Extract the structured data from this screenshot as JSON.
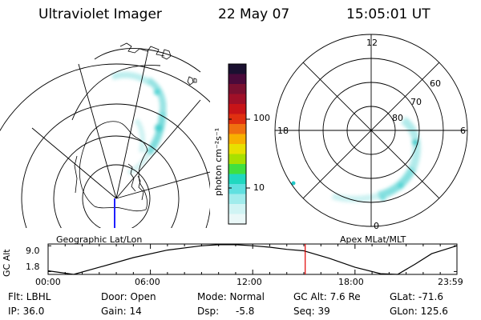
{
  "header": {
    "title": "Ultraviolet Imager",
    "date": "22 May 07",
    "time": "15:05:01 UT"
  },
  "panels": {
    "geographic_label": "Geographic Lat/Lon",
    "apex_label": "Apex MLat/MLT"
  },
  "colorbar": {
    "unit_label": "photon cm⁻²s⁻¹",
    "scale": "log",
    "ticks": [
      {
        "value": 100,
        "label": "100"
      },
      {
        "value": 10,
        "label": "10"
      }
    ],
    "colors": [
      "#1a1030",
      "#4a0a3a",
      "#7a1030",
      "#a01028",
      "#c81418",
      "#e03010",
      "#f07010",
      "#f8b000",
      "#e8e000",
      "#a8e000",
      "#40e040",
      "#20d8c0",
      "#60e0e0",
      "#a0ecec",
      "#d0f4f4",
      "#eaf8f8"
    ]
  },
  "apex_dial": {
    "mlt_labels": [
      "12",
      "18",
      "6",
      "0"
    ],
    "mlat_labels": [
      "60",
      "70",
      "80"
    ]
  },
  "chart_data": {
    "type": "line",
    "title": "",
    "ylabel": "GC Alt",
    "xlabel": "",
    "x_ticks": [
      "00:00",
      "06:00",
      "12:00",
      "18:00",
      "23:59"
    ],
    "y_ticks": [
      "9.0",
      "1.8"
    ],
    "ylim": [
      1.0,
      9.5
    ],
    "series": [
      {
        "x": [
          0.0,
          1.5,
          3.0,
          5.0,
          7.0,
          9.0,
          10.0,
          11.0,
          12.0,
          13.0,
          14.0,
          15.0,
          16.5,
          18.0,
          19.5,
          20.5,
          21.5,
          22.5,
          23.98
        ],
        "y": [
          2.0,
          1.0,
          3.0,
          5.7,
          7.8,
          9.0,
          9.3,
          9.3,
          9.0,
          8.6,
          8.0,
          7.6,
          5.5,
          3.0,
          1.2,
          1.0,
          3.8,
          6.8,
          9.0
        ]
      }
    ],
    "current_marker": {
      "x": 15.08,
      "label": ""
    }
  },
  "status": {
    "filter": "Flt: LBHL",
    "door": "Door: Open",
    "mode": "Mode: Normal",
    "gc_alt": "GC Alt: 7.6 Re",
    "glat": "GLat: -71.6",
    "ip": "IP: 36.0",
    "gain": "Gain: 14",
    "dsp_label": "Dsp:",
    "dsp_value": "-5.8",
    "seq": "Seq: 39",
    "glon": "GLon: 125.6"
  },
  "colors": {
    "marker": "#e00000",
    "ink": "#000000"
  }
}
